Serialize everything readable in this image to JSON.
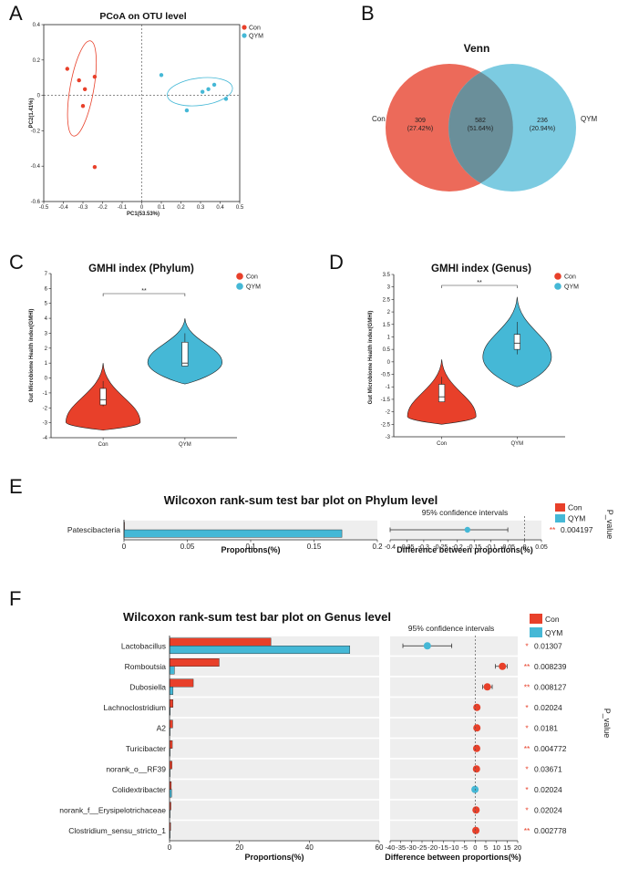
{
  "colors": {
    "con": "#e8402a",
    "qym": "#45b8d6",
    "venn_con": "#ec6a5a",
    "venn_qym": "#7ccbe1",
    "venn_overlap": "#6a8f9a",
    "row_bg": "#eeeeee"
  },
  "panels": {
    "a": "A",
    "b": "B",
    "c": "C",
    "d": "D",
    "e": "E",
    "f": "F"
  },
  "legend": {
    "con": "Con",
    "qym": "QYM"
  },
  "chart_data": [
    {
      "id": "A",
      "type": "scatter",
      "title": "PCoA on OTU level",
      "xlabel": "PC1(53.53%)",
      "ylabel": "PC2(1.41%)",
      "xlim": [
        -0.5,
        0.5
      ],
      "ylim": [
        -0.6,
        0.4
      ],
      "xticks": [
        "-0.5",
        "-0.4",
        "-0.3",
        "-0.2",
        "-0.1",
        "0",
        "0.1",
        "0.2",
        "0.3",
        "0.4",
        "0.5"
      ],
      "yticks": [
        "0.4",
        "0.2",
        "0",
        "-0.2",
        "-0.4",
        "-0.6"
      ],
      "series": [
        {
          "name": "Con",
          "points": [
            [
              -0.38,
              0.15
            ],
            [
              -0.32,
              0.085
            ],
            [
              -0.29,
              0.035
            ],
            [
              -0.24,
              0.105
            ],
            [
              -0.3,
              -0.06
            ],
            [
              -0.24,
              -0.405
            ]
          ]
        },
        {
          "name": "QYM",
          "points": [
            [
              0.1,
              0.115
            ],
            [
              0.23,
              -0.085
            ],
            [
              0.31,
              0.02
            ],
            [
              0.34,
              0.035
            ],
            [
              0.37,
              0.06
            ],
            [
              0.43,
              -0.02
            ]
          ]
        }
      ]
    },
    {
      "id": "B",
      "type": "venn",
      "title": "Venn",
      "sets": [
        {
          "name": "Con",
          "only": "309",
          "only_pct": "(27.42%)"
        },
        {
          "name": "QYM",
          "only": "236",
          "only_pct": "(20.94%)"
        }
      ],
      "overlap": "582",
      "overlap_pct": "(51.64%)"
    },
    {
      "id": "C",
      "type": "violin",
      "title": "GMHI index (Phylum)",
      "ylabel": "Gut Microbiome Health index(GMHI)",
      "categories": [
        "Con",
        "QYM"
      ],
      "ylim": [
        -4,
        7
      ],
      "yticks": [
        "7",
        "6",
        "5",
        "4",
        "3",
        "2",
        "1",
        "0",
        "-1",
        "-2",
        "-3",
        "-4"
      ],
      "significance": "**",
      "groups": [
        {
          "name": "Con",
          "min": -3.5,
          "max": 1.0,
          "q1": -1.8,
          "median": -1.45,
          "q3": -0.7,
          "wmin": -1.9,
          "wmax": -0.2
        },
        {
          "name": "QYM",
          "min": -0.4,
          "max": 4.0,
          "q1": 0.8,
          "median": 1.0,
          "q3": 2.4,
          "wmin": 0.8,
          "wmax": 3.0
        }
      ]
    },
    {
      "id": "D",
      "type": "violin",
      "title": "GMHI index (Genus)",
      "ylabel": "Gut Microbiome Health index(GMHI)",
      "categories": [
        "Con",
        "QYM"
      ],
      "ylim": [
        -3,
        3.5
      ],
      "yticks": [
        "3.5",
        "3",
        "2.5",
        "2",
        "1.5",
        "1",
        "0.5",
        "0",
        "-0.5",
        "-1",
        "-1.5",
        "-2",
        "-2.5",
        "-3"
      ],
      "significance": "**",
      "groups": [
        {
          "name": "Con",
          "min": -2.5,
          "max": 0.1,
          "q1": -1.6,
          "median": -1.4,
          "q3": -0.9,
          "wmin": -1.6,
          "wmax": -0.6
        },
        {
          "name": "QYM",
          "min": -1.0,
          "max": 2.6,
          "q1": 0.5,
          "median": 0.75,
          "q3": 1.1,
          "wmin": 0.3,
          "wmax": 1.6
        }
      ]
    },
    {
      "id": "E",
      "type": "bar",
      "title": "Wilcoxon rank-sum test bar plot on Phylum level",
      "xlabel": "Proportions(%)",
      "ci_title": "95% confidence intervals",
      "ci_xlabel": "Difference between proportions(%)",
      "pvalue_label": "P_value",
      "categories": [
        "Patescibacteria"
      ],
      "xlim": [
        0,
        0.2
      ],
      "xticks": [
        "0",
        "0.05",
        "0.1",
        "0.15",
        "0.2"
      ],
      "ci_xlim": [
        -0.4,
        0.05
      ],
      "ci_xticks": [
        "-0.4",
        "-0.35",
        "-0.3",
        "-0.25",
        "-0.2",
        "-0.15",
        "-0.1",
        "-0.05",
        "0",
        "0.05"
      ],
      "series": [
        {
          "name": "Con",
          "values": [
            0.0
          ]
        },
        {
          "name": "QYM",
          "values": [
            0.172
          ]
        }
      ],
      "diff": [
        {
          "value": -0.17,
          "low": -0.4,
          "high": -0.05,
          "color": "qym"
        }
      ],
      "stars": [
        "**"
      ],
      "pvalues": [
        "0.004197"
      ]
    },
    {
      "id": "F",
      "type": "bar",
      "title": "Wilcoxon rank-sum test bar plot on Genus level",
      "xlabel": "Proportions(%)",
      "ci_title": "95% confidence intervals",
      "ci_xlabel": "Difference between proportions(%)",
      "pvalue_label": "P_value",
      "categories": [
        "Lactobacillus",
        "Romboutsia",
        "Dubosiella",
        "Lachnoclostridium",
        "A2",
        "Turicibacter",
        "norank_o__RF39",
        "Colidextribacter",
        "norank_f__Erysipelotrichaceae",
        "Clostridium_sensu_stricto_1"
      ],
      "xlim": [
        0,
        60
      ],
      "xticks": [
        "0",
        "20",
        "40",
        "60"
      ],
      "ci_xlim": [
        -40,
        20
      ],
      "ci_xticks": [
        "-40",
        "-35",
        "-30",
        "-25",
        "-20",
        "-15",
        "-10",
        "-5",
        "0",
        "5",
        "10",
        "15",
        "20"
      ],
      "series": [
        {
          "name": "Con",
          "values": [
            29.0,
            14.2,
            6.8,
            1.0,
            0.9,
            0.8,
            0.7,
            0.5,
            0.4,
            0.3
          ]
        },
        {
          "name": "QYM",
          "values": [
            51.6,
            1.4,
            1.0,
            0.2,
            0.1,
            0.1,
            0.1,
            0.6,
            0.1,
            0.05
          ]
        }
      ],
      "diff": [
        {
          "value": -22.5,
          "low": -34,
          "high": -11,
          "color": "qym"
        },
        {
          "value": 12.8,
          "low": 9.5,
          "high": 15.0,
          "color": "con"
        },
        {
          "value": 5.7,
          "low": 3.5,
          "high": 8.0,
          "color": "con"
        },
        {
          "value": 0.8,
          "low": 0.3,
          "high": 1.3,
          "color": "con"
        },
        {
          "value": 0.8,
          "low": 0.3,
          "high": 1.3,
          "color": "con"
        },
        {
          "value": 0.7,
          "low": 0.2,
          "high": 1.2,
          "color": "con"
        },
        {
          "value": 0.6,
          "low": 0.2,
          "high": 1.0,
          "color": "con"
        },
        {
          "value": -0.1,
          "low": -0.4,
          "high": 0.2,
          "color": "qym"
        },
        {
          "value": 0.4,
          "low": 0.1,
          "high": 0.7,
          "color": "con"
        },
        {
          "value": 0.3,
          "low": 0.1,
          "high": 0.5,
          "color": "con"
        }
      ],
      "stars": [
        "*",
        "**",
        "**",
        "*",
        "*",
        "**",
        "*",
        "*",
        "*",
        "**"
      ],
      "pvalues": [
        "0.01307",
        "0.008239",
        "0.008127",
        "0.02024",
        "0.0181",
        "0.004772",
        "0.03671",
        "0.02024",
        "0.02024",
        "0.002778"
      ]
    }
  ]
}
